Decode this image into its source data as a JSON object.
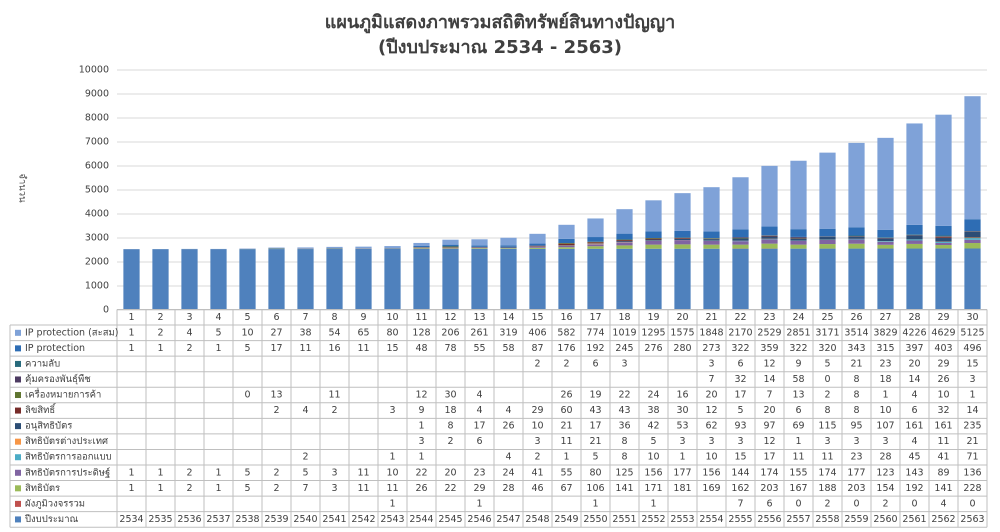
{
  "chart_data": {
    "type": "stacked_bar",
    "title": "แผนภูมิแสดงภาพรวมสถิติทรัพย์สินทางปัญญา",
    "subtitle": "(ปีงบประมาณ 2534 - 2563)",
    "y_label": "จำนวน",
    "categories": [
      1,
      2,
      3,
      4,
      5,
      6,
      7,
      8,
      9,
      10,
      11,
      12,
      13,
      14,
      15,
      16,
      17,
      18,
      19,
      20,
      21,
      22,
      23,
      24,
      25,
      26,
      27,
      28,
      29,
      30
    ],
    "ylim": [
      0,
      10000
    ],
    "yticks": [
      0,
      1000,
      2000,
      3000,
      4000,
      5000,
      6000,
      7000,
      8000,
      9000,
      10000
    ],
    "grid": true,
    "series": [
      {
        "name": "ปีงบประมาณ",
        "color": "#4f81bd",
        "values": [
          2534,
          2535,
          2536,
          2537,
          2538,
          2539,
          2540,
          2541,
          2542,
          2543,
          2544,
          2545,
          2546,
          2547,
          2548,
          2549,
          2550,
          2551,
          2552,
          2553,
          2554,
          2555,
          2556,
          2557,
          2558,
          2559,
          2560,
          2561,
          2562,
          2563
        ]
      },
      {
        "name": "ผังภูมิวงจรรวม",
        "color": "#c0504d",
        "values": [
          null,
          null,
          null,
          null,
          null,
          null,
          null,
          null,
          null,
          1,
          null,
          null,
          1,
          null,
          null,
          null,
          1,
          null,
          1,
          null,
          null,
          7,
          6,
          0,
          2,
          0,
          2,
          0,
          4,
          0
        ]
      },
      {
        "name": "สิทธิบัตร",
        "color": "#9bbb59",
        "values": [
          1,
          1,
          2,
          1,
          5,
          2,
          7,
          3,
          11,
          11,
          26,
          22,
          29,
          28,
          46,
          67,
          106,
          141,
          171,
          181,
          169,
          162,
          203,
          167,
          188,
          203,
          154,
          192,
          141,
          228
        ]
      },
      {
        "name": "สิทธิบัตรการประดิษฐ์",
        "color": "#8064a2",
        "values": [
          1,
          1,
          2,
          1,
          5,
          2,
          5,
          3,
          11,
          10,
          22,
          20,
          23,
          24,
          41,
          55,
          80,
          125,
          156,
          177,
          156,
          144,
          174,
          155,
          174,
          177,
          123,
          143,
          89,
          136
        ]
      },
      {
        "name": "สิทธิบัตรการออกแบบ",
        "color": "#4bacc6",
        "values": [
          null,
          null,
          null,
          null,
          null,
          null,
          2,
          null,
          null,
          1,
          1,
          null,
          null,
          4,
          2,
          1,
          5,
          8,
          10,
          1,
          10,
          15,
          17,
          11,
          11,
          23,
          28,
          45,
          41,
          71
        ]
      },
      {
        "name": "สิทธิบัตรต่างประเทศ",
        "color": "#f79646",
        "values": [
          null,
          null,
          null,
          null,
          null,
          null,
          null,
          null,
          null,
          null,
          3,
          2,
          6,
          null,
          3,
          11,
          21,
          8,
          5,
          3,
          3,
          3,
          12,
          1,
          3,
          3,
          3,
          4,
          11,
          21
        ]
      },
      {
        "name": "อนุสิทธิบัตร",
        "color": "#2c4d75",
        "values": [
          null,
          null,
          null,
          null,
          null,
          null,
          null,
          null,
          null,
          null,
          1,
          8,
          17,
          26,
          10,
          21,
          17,
          36,
          42,
          53,
          62,
          93,
          97,
          69,
          115,
          95,
          107,
          161,
          161,
          235
        ]
      },
      {
        "name": "ลิขสิทธิ์",
        "color": "#772c2a",
        "values": [
          null,
          null,
          null,
          null,
          null,
          2,
          4,
          2,
          null,
          3,
          9,
          18,
          4,
          4,
          29,
          60,
          43,
          43,
          38,
          30,
          12,
          5,
          20,
          6,
          8,
          8,
          10,
          6,
          32,
          14
        ]
      },
      {
        "name": "เครื่องหมายการค้า",
        "color": "#5f7530",
        "values": [
          null,
          null,
          null,
          null,
          0,
          13,
          null,
          11,
          null,
          null,
          12,
          30,
          4,
          null,
          null,
          26,
          19,
          22,
          24,
          16,
          20,
          17,
          7,
          13,
          2,
          8,
          1,
          4,
          10,
          1
        ]
      },
      {
        "name": "คุ้มครองพันธุ์พืช",
        "color": "#4d3b62",
        "values": [
          null,
          null,
          null,
          null,
          null,
          null,
          null,
          null,
          null,
          null,
          null,
          null,
          null,
          null,
          null,
          null,
          null,
          null,
          null,
          null,
          7,
          32,
          14,
          58,
          0,
          8,
          18,
          14,
          26,
          3
        ]
      },
      {
        "name": "ความลับ",
        "color": "#276a7c",
        "values": [
          null,
          null,
          null,
          null,
          null,
          null,
          null,
          null,
          null,
          null,
          null,
          null,
          null,
          null,
          2,
          2,
          6,
          3,
          null,
          null,
          3,
          6,
          12,
          9,
          5,
          21,
          23,
          20,
          29,
          15
        ]
      },
      {
        "name": "IP protection",
        "color": "#2e6db4",
        "values": [
          1,
          1,
          2,
          1,
          5,
          17,
          11,
          16,
          11,
          15,
          48,
          78,
          55,
          58,
          87,
          176,
          192,
          245,
          276,
          280,
          273,
          322,
          359,
          322,
          320,
          343,
          315,
          397,
          403,
          496
        ]
      },
      {
        "name": "IP protection (สะสม)",
        "color": "#7fa2d8",
        "values": [
          1,
          2,
          4,
          5,
          10,
          27,
          38,
          54,
          65,
          80,
          128,
          206,
          261,
          319,
          406,
          582,
          774,
          1019,
          1295,
          1575,
          1848,
          2170,
          2529,
          2851,
          3171,
          3514,
          3829,
          4226,
          4629,
          5125
        ]
      }
    ]
  }
}
